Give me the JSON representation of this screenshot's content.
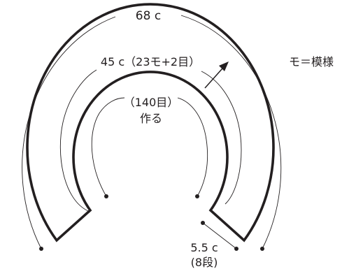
{
  "labels": {
    "outer_circumference": "68 c",
    "inner_circumference": "45 c（23モ+2目）",
    "cast_on_stitches": "（140目）",
    "cast_on_action": "作る",
    "width_measure": "5.5 c",
    "width_rows": "(8段)",
    "legend": "モ＝模様"
  },
  "colors": {
    "line": "#231f20",
    "background": "#ffffff"
  },
  "icons": {
    "direction": "knitting-direction-arrow-icon"
  }
}
